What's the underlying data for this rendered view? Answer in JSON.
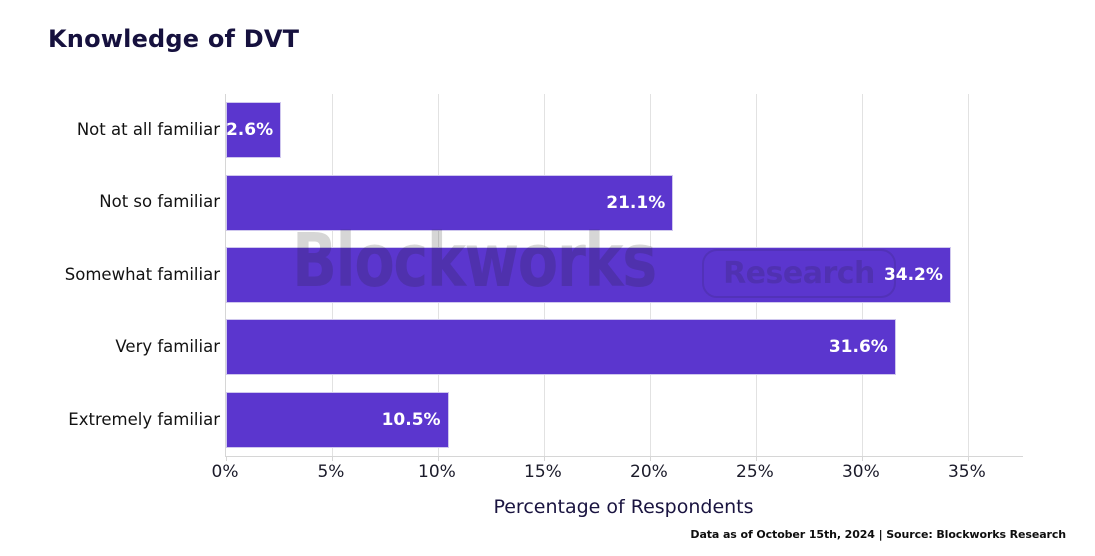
{
  "header": {
    "title": "Knowledge of DVT"
  },
  "watermark": {
    "brand": "Blockworks",
    "badge": "Research"
  },
  "footer": {
    "text": "Data as of October 15th, 2024 | Source: Blockworks Research"
  },
  "chart_data": {
    "type": "bar",
    "orientation": "horizontal",
    "title": "Knowledge of DVT",
    "categories": [
      "Not at all familiar",
      "Not so familiar",
      "Somewhat familiar",
      "Very familiar",
      "Extremely familiar"
    ],
    "values": [
      2.6,
      21.1,
      34.2,
      31.6,
      10.5
    ],
    "value_labels": [
      "2.6%",
      "21.1%",
      "34.2%",
      "31.6%",
      "10.5%"
    ],
    "xlabel": "Percentage of Respondents",
    "ylabel": "",
    "x_ticks": {
      "values": [
        0,
        5,
        10,
        15,
        20,
        25,
        30,
        35
      ],
      "labels": [
        "0%",
        "5%",
        "10%",
        "15%",
        "20%",
        "25%",
        "30%",
        "35%"
      ]
    },
    "xlim": [
      0,
      37.6
    ],
    "grid": "vertical",
    "legend": "none",
    "colors": {
      "bar": "#5B36CE",
      "bar_border": "#CFC7EE",
      "bar_label": "#FFFFFF",
      "grid": "#E2E2E2",
      "axis_line": "#D6D6D6",
      "title_text": "#16113E",
      "tick_text": "#1B1B2A"
    }
  }
}
